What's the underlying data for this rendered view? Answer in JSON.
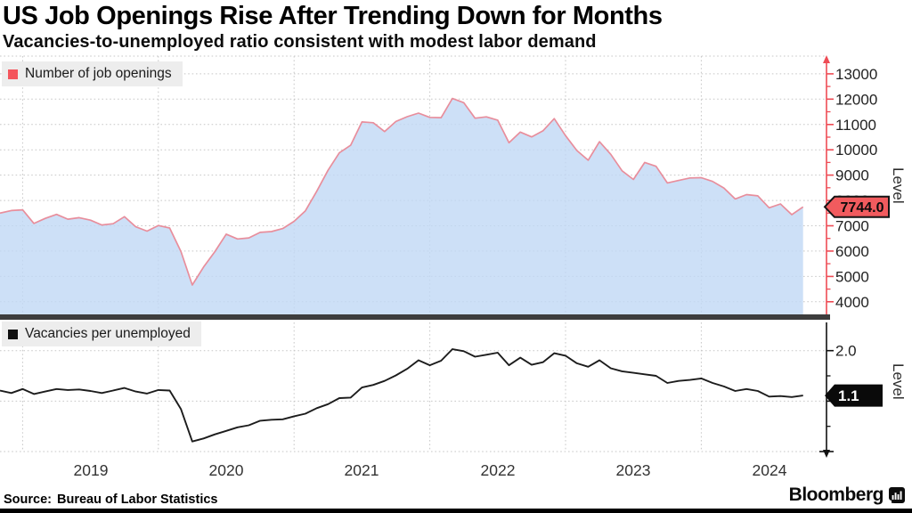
{
  "header": {
    "title": "US Job Openings Rise After Trending Down for Months",
    "subtitle": "Vacancies-to-unemployed ratio consistent with modest labor demand"
  },
  "footer": {
    "source_label": "Source:",
    "source_text": "Bureau of Labor Statistics",
    "brand": "Bloomberg"
  },
  "x_axis": {
    "labels": [
      "2019",
      "2020",
      "2021",
      "2022",
      "2023",
      "2024"
    ]
  },
  "top_panel": {
    "legend": "Number of job openings",
    "axis_title": "Level",
    "ticks": [
      13000,
      12000,
      11000,
      10000,
      9000,
      8000,
      7000,
      6000,
      5000,
      4000
    ],
    "last_value_label": "7744.0",
    "colors": {
      "line": "#e88e9c",
      "fill": "#cfe1f7",
      "axis": "#ee4c55",
      "badge": "#f15b5e",
      "swatch": "#f4555c"
    }
  },
  "bottom_panel": {
    "legend": "Vacancies per unemployed",
    "axis_title": "Level",
    "ticks": [
      2.0
    ],
    "last_value_label": "1.1",
    "colors": {
      "line": "#1c1c1c",
      "axis": "#111111",
      "badge": "#0a0a0a",
      "swatch": "#111111"
    }
  },
  "chart_data": [
    {
      "type": "area",
      "title": "Number of job openings",
      "unit": "thousands",
      "frequency": "monthly",
      "x_start": "2018-11",
      "x_end": "2024-10",
      "ylabel": "Level",
      "ylim": [
        4000,
        13000
      ],
      "y_ticks": [
        13000,
        12000,
        11000,
        10000,
        9000,
        8000,
        7000,
        6000,
        5000,
        4000
      ],
      "last_value": 7744.0,
      "values": [
        7500,
        7600,
        7630,
        7090,
        7290,
        7450,
        7260,
        7320,
        7220,
        7030,
        7080,
        7360,
        6960,
        6790,
        7010,
        6910,
        5980,
        4660,
        5370,
        5980,
        6670,
        6480,
        6520,
        6740,
        6770,
        6890,
        7175,
        7590,
        8360,
        9190,
        9880,
        10180,
        11100,
        11070,
        10720,
        11120,
        11310,
        11450,
        11280,
        11270,
        12030,
        11860,
        11250,
        11300,
        11170,
        10280,
        10700,
        10510,
        10750,
        11230,
        10560,
        9970,
        9590,
        10320,
        9820,
        9170,
        8830,
        9500,
        9350,
        8690,
        8790,
        8890,
        8900,
        8750,
        8490,
        8060,
        8230,
        8180,
        7710,
        7860,
        7440,
        7744
      ]
    },
    {
      "type": "line",
      "title": "Vacancies per unemployed",
      "unit": "ratio",
      "frequency": "monthly",
      "x_start": "2018-11",
      "x_end": "2024-10",
      "ylabel": "Level",
      "ylim": [
        0,
        2.5
      ],
      "y_ticks": [
        2.0,
        1.0,
        0.0
      ],
      "last_value": 1.1,
      "values": [
        1.21,
        1.16,
        1.24,
        1.14,
        1.19,
        1.24,
        1.22,
        1.23,
        1.2,
        1.16,
        1.21,
        1.26,
        1.19,
        1.15,
        1.22,
        1.21,
        0.84,
        0.2,
        0.26,
        0.34,
        0.41,
        0.48,
        0.52,
        0.61,
        0.63,
        0.64,
        0.7,
        0.75,
        0.86,
        0.94,
        1.06,
        1.07,
        1.27,
        1.32,
        1.4,
        1.51,
        1.64,
        1.81,
        1.71,
        1.8,
        2.03,
        1.99,
        1.88,
        1.92,
        1.96,
        1.71,
        1.86,
        1.72,
        1.77,
        1.95,
        1.9,
        1.75,
        1.68,
        1.81,
        1.65,
        1.59,
        1.56,
        1.53,
        1.5,
        1.36,
        1.4,
        1.42,
        1.45,
        1.36,
        1.29,
        1.2,
        1.24,
        1.2,
        1.09,
        1.1,
        1.08,
        1.11
      ]
    }
  ]
}
